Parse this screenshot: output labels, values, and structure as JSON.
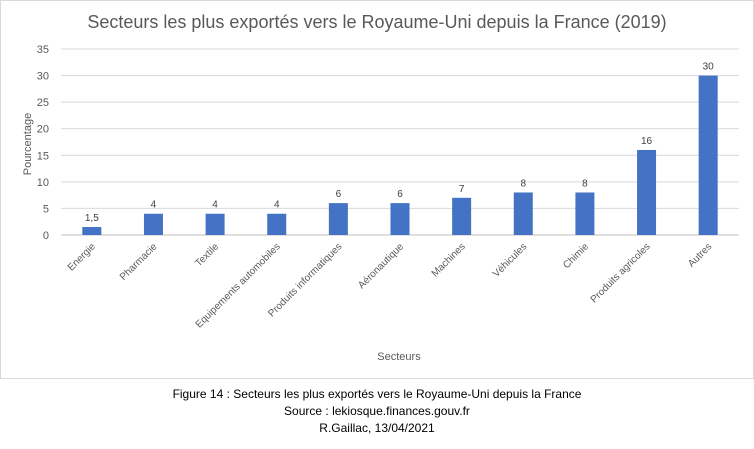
{
  "chart_data": {
    "type": "bar",
    "title": "Secteurs les plus exportés vers le Royaume-Uni depuis la France (2019)",
    "xlabel": "Secteurs",
    "ylabel": "Pourcentage",
    "categories": [
      "Energie",
      "Pharmacie",
      "Textile",
      "Equipements automobiles",
      "Produits informatiques",
      "Aéronautique",
      "Machines",
      "Véhicules",
      "Chimie",
      "Produits agricoles",
      "Autres"
    ],
    "values": [
      1.5,
      4,
      4,
      4,
      6,
      6,
      7,
      8,
      8,
      16,
      30
    ],
    "value_labels": [
      "1,5",
      "4",
      "4",
      "4",
      "6",
      "6",
      "7",
      "8",
      "8",
      "16",
      "30"
    ],
    "yticks": [
      "0",
      "5",
      "10",
      "15",
      "20",
      "25",
      "30",
      "35"
    ],
    "ylim": [
      0,
      35
    ],
    "grid": true,
    "legend": "none",
    "bar_color": "#4472C4",
    "grid_color": "#d9d9d9",
    "text_color": "#595959"
  },
  "caption": {
    "line1": "Figure 14 : Secteurs les plus exportés vers le Royaume-Uni depuis la France",
    "line2": "Source : lekiosque.finances.gouv.fr",
    "line3": "R.Gaillac, 13/04/2021"
  }
}
